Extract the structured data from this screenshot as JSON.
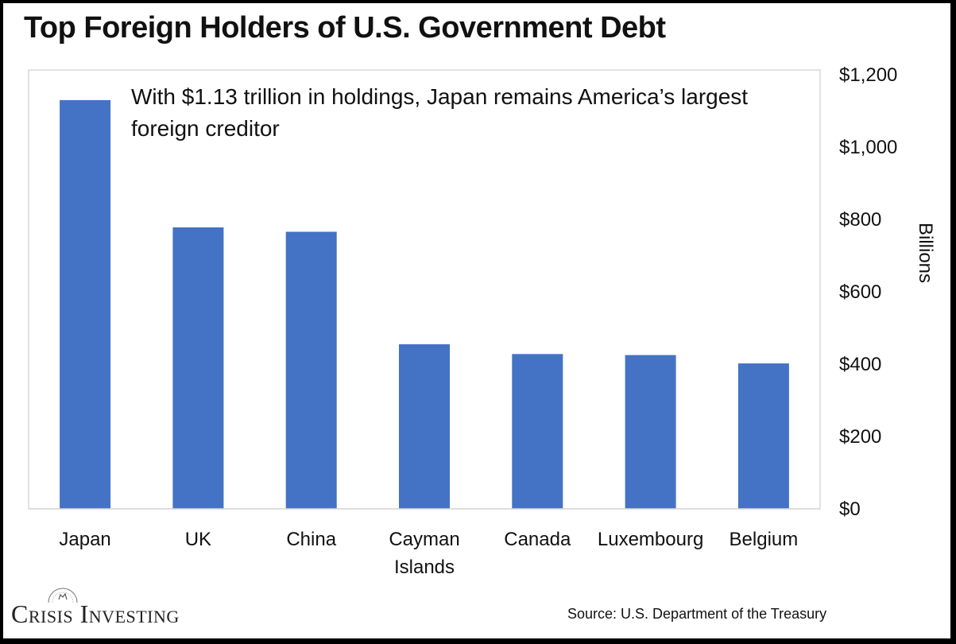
{
  "chart_data": {
    "type": "bar",
    "title": "Top Foreign Holders of U.S. Government Debt",
    "annotation": "With $1.13 trillion in holdings, Japan remains America’s largest foreign creditor",
    "categories": [
      "Japan",
      "UK",
      "China",
      "Cayman Islands",
      "Canada",
      "Luxembourg",
      "Belgium"
    ],
    "values": [
      1130,
      778,
      766,
      455,
      428,
      425,
      402
    ],
    "ylabel": "Billions",
    "ylim": [
      0,
      1200
    ],
    "yticks": [
      0,
      200,
      400,
      600,
      800,
      1000,
      1200
    ],
    "ytick_labels": [
      "$0",
      "$200",
      "$400",
      "$600",
      "$800",
      "$1,000",
      "$1,200"
    ],
    "y_axis_side": "right",
    "grid": false,
    "bar_color": "#4472C4"
  },
  "footer": {
    "logo_text": "Crisis Investing",
    "source": "Source: U.S. Department of the Treasury"
  }
}
